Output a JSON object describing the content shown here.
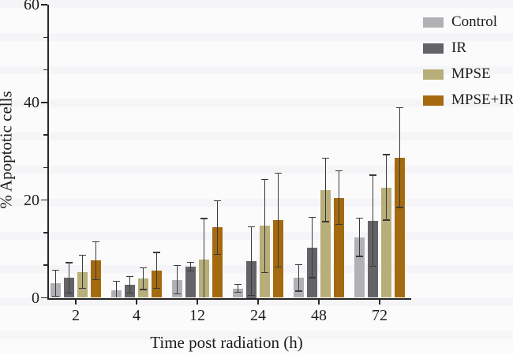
{
  "chart_data": {
    "type": "bar",
    "title": "",
    "xlabel": "Time post radiation (h)",
    "ylabel": "% Apoptotic cells",
    "categories": [
      "2",
      "4",
      "12",
      "24",
      "48",
      "72"
    ],
    "series": [
      {
        "name": "Control",
        "color": "#b1b1b5",
        "values": [
          3.0,
          1.6,
          3.7,
          1.9,
          4.1,
          12.4
        ],
        "errors": [
          2.7,
          1.8,
          2.9,
          0.8,
          2.7,
          3.9
        ]
      },
      {
        "name": "IR",
        "color": "#646468",
        "values": [
          4.1,
          2.7,
          6.4,
          7.5,
          10.3,
          15.8
        ],
        "errors": [
          3.1,
          1.7,
          0.9,
          7.0,
          6.2,
          9.3
        ]
      },
      {
        "name": "MPSE",
        "color": "#b8ae79",
        "values": [
          5.3,
          3.9,
          7.8,
          14.7,
          22.1,
          22.6
        ],
        "errors": [
          3.4,
          2.2,
          8.4,
          9.5,
          6.5,
          6.7
        ]
      },
      {
        "name": "MPSE+IR",
        "color": "#a56a10",
        "values": [
          7.6,
          5.6,
          14.4,
          15.9,
          20.5,
          28.7
        ],
        "errors": [
          3.9,
          3.7,
          5.5,
          9.6,
          5.5,
          10.2
        ]
      }
    ],
    "ylim": [
      0,
      60
    ],
    "y_major_ticks": [
      0,
      20,
      40,
      60
    ],
    "y_minor_between_major": 2,
    "legend_position": "top-right",
    "grid": false,
    "error_bars": "sd, both directions, caps"
  }
}
